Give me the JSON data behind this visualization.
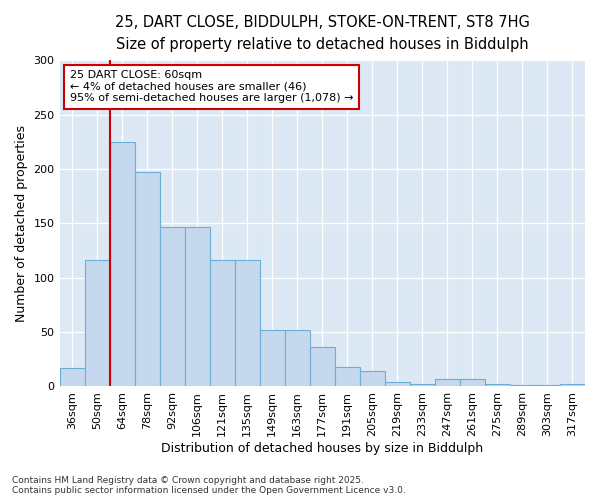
{
  "title_line1": "25, DART CLOSE, BIDDULPH, STOKE-ON-TRENT, ST8 7HG",
  "title_line2": "Size of property relative to detached houses in Biddulph",
  "xlabel": "Distribution of detached houses by size in Biddulph",
  "ylabel": "Number of detached properties",
  "categories": [
    "36sqm",
    "50sqm",
    "64sqm",
    "78sqm",
    "92sqm",
    "106sqm",
    "121sqm",
    "135sqm",
    "149sqm",
    "163sqm",
    "177sqm",
    "191sqm",
    "205sqm",
    "219sqm",
    "233sqm",
    "247sqm",
    "261sqm",
    "275sqm",
    "289sqm",
    "303sqm",
    "317sqm"
  ],
  "values": [
    17,
    116,
    225,
    197,
    147,
    147,
    116,
    116,
    52,
    52,
    36,
    18,
    14,
    4,
    2,
    7,
    7,
    2,
    1,
    1,
    2
  ],
  "bar_color": "#c5d8ed",
  "bar_edge_color": "#6baed6",
  "vline_color": "#cc0000",
  "vline_x_index": 1.5,
  "annotation_text": "25 DART CLOSE: 60sqm\n← 4% of detached houses are smaller (46)\n95% of semi-detached houses are larger (1,078) →",
  "annotation_box_color": "#ffffff",
  "annotation_edge_color": "#cc0000",
  "ylim": [
    0,
    300
  ],
  "yticks": [
    0,
    50,
    100,
    150,
    200,
    250,
    300
  ],
  "footer_text": "Contains HM Land Registry data © Crown copyright and database right 2025.\nContains public sector information licensed under the Open Government Licence v3.0.",
  "fig_bg_color": "#ffffff",
  "plot_bg_color": "#dce9f5",
  "grid_color": "#ffffff",
  "title_fontsize": 10.5,
  "subtitle_fontsize": 9.5,
  "axis_label_fontsize": 9,
  "tick_fontsize": 8,
  "annotation_fontsize": 8,
  "footer_fontsize": 6.5
}
